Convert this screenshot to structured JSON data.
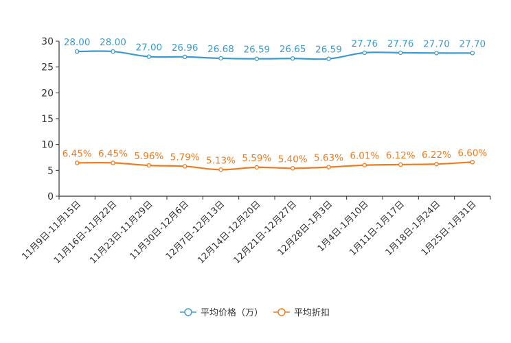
{
  "chart_data": {
    "type": "line",
    "title": "",
    "xlabel": "",
    "ylabel": "",
    "ylim": [
      0,
      30
    ],
    "yticks": [
      0,
      5,
      10,
      15,
      20,
      25,
      30
    ],
    "categories": [
      "11月9日-11月15日",
      "11月16日-11月22日",
      "11月23日-11月29日",
      "11月30日-12月6日",
      "12月7日-12月13日",
      "12月14日-12月20日",
      "12月21日-12月27日",
      "12月28日-1月3日",
      "1月4日-1月10日",
      "1月11日-1月17日",
      "1月18日-1月24日",
      "1月25日-1月31日"
    ],
    "series": [
      {
        "name": "平均价格（万）",
        "color": "#3b9bcf",
        "values": [
          28.0,
          28.0,
          27.0,
          26.96,
          26.68,
          26.59,
          26.65,
          26.59,
          27.76,
          27.76,
          27.7,
          27.7
        ],
        "labels": [
          "28.00",
          "28.00",
          "27.00",
          "26.96",
          "26.68",
          "26.59",
          "26.65",
          "26.59",
          "27.76",
          "27.76",
          "27.70",
          "27.70"
        ]
      },
      {
        "name": "平均折扣",
        "color": "#f07b1d",
        "values": [
          6.45,
          6.45,
          5.96,
          5.79,
          5.13,
          5.59,
          5.4,
          5.63,
          6.01,
          6.12,
          6.22,
          6.6
        ],
        "labels": [
          "6.45%",
          "6.45%",
          "5.96%",
          "5.79%",
          "5.13%",
          "5.59%",
          "5.40%",
          "5.63%",
          "6.01%",
          "6.12%",
          "6.22%",
          "6.60%"
        ]
      }
    ],
    "legend_position": "bottom-center"
  }
}
